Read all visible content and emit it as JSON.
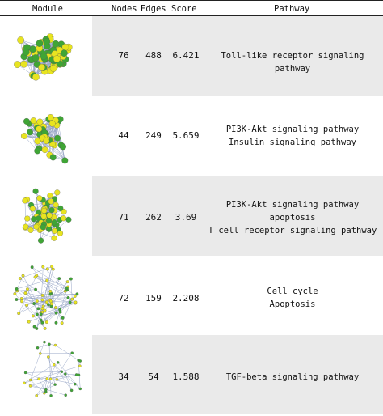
{
  "header": {
    "module": "Module",
    "nodes": "Nodes",
    "edges": "Edges",
    "score": "Score",
    "pathway": "Pathway"
  },
  "colors": {
    "node_green": "#3fa535",
    "node_yellow": "#e8e420",
    "edge": "#9aa8c8",
    "row_shade": "#eaeaea"
  },
  "rows": [
    {
      "nodes": "76",
      "edges": "488",
      "score": "6.421",
      "pathways": [
        "Toll-like receptor signaling pathway"
      ]
    },
    {
      "nodes": "44",
      "edges": "249",
      "score": "5.659",
      "pathways": [
        "PI3K-Akt signaling pathway",
        "Insulin signaling pathway"
      ]
    },
    {
      "nodes": "71",
      "edges": "262",
      "score": "3.69",
      "pathways": [
        "PI3K-Akt signaling pathway",
        "apoptosis",
        "T cell receptor signaling pathway"
      ]
    },
    {
      "nodes": "72",
      "edges": "159",
      "score": "2.208",
      "pathways": [
        "Cell cycle",
        "Apoptosis"
      ]
    },
    {
      "nodes": "34",
      "edges": "54",
      "score": "1.588",
      "pathways": [
        "TGF-beta signaling pathway"
      ]
    }
  ]
}
